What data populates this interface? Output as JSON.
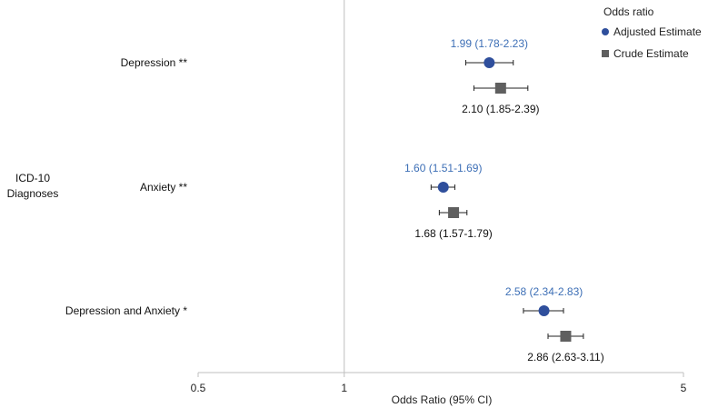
{
  "chart_data": {
    "type": "scatter",
    "subtype": "forest-plot",
    "xlabel": "Odds Ratio (95% CI)",
    "ylabel": "ICD-10 Diagnoses",
    "x_scale": "log",
    "xlim": [
      0.5,
      5
    ],
    "x_ticks": [
      "0.5",
      "1",
      "5"
    ],
    "reference_line": 1,
    "grid": false,
    "legend": {
      "title": "Odds ratio",
      "position": "top-right",
      "entries": [
        "Adjusted Estimate",
        "Crude Estimate"
      ]
    },
    "categories": [
      "Depression **",
      "Anxiety **",
      "Depression and Anxiety *"
    ],
    "series": [
      {
        "name": "Adjusted Estimate",
        "marker": "circle",
        "color": "#2f4f9c",
        "label_color": "#3d6fb6",
        "values": [
          1.99,
          1.6,
          2.58
        ],
        "lower": [
          1.78,
          1.51,
          2.34
        ],
        "upper": [
          2.23,
          1.69,
          2.83
        ],
        "labels": [
          "1.99 (1.78-2.23)",
          "1.60 (1.51-1.69)",
          "2.58 (2.34-2.83)"
        ]
      },
      {
        "name": "Crude Estimate",
        "marker": "square",
        "color": "#5f5f5f",
        "label_color": "#111111",
        "values": [
          2.1,
          1.68,
          2.86
        ],
        "lower": [
          1.85,
          1.57,
          2.63
        ],
        "upper": [
          2.39,
          1.79,
          3.11
        ],
        "labels": [
          "2.10 (1.85-2.39)",
          "1.68 (1.57-1.79)",
          "2.86 (2.63-3.11)"
        ]
      }
    ]
  },
  "colors": {
    "axis": "#bfbfbf",
    "ref_line": "#bfbfbf",
    "error_bar": "#222222"
  }
}
